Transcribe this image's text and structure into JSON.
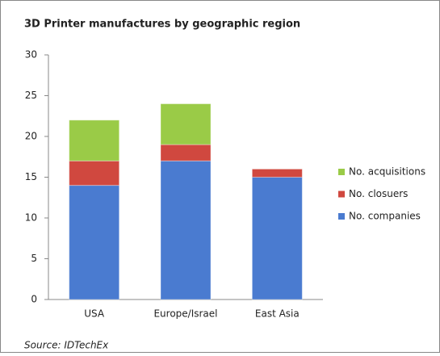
{
  "chart_data": {
    "type": "stacked_bar",
    "title": "3D Printer manufactures by geographic region",
    "categories": [
      "USA",
      "Europe/Israel",
      "East Asia"
    ],
    "series": [
      {
        "name": "No. companies",
        "color": "#4a7bd0",
        "values": [
          14,
          17,
          15
        ]
      },
      {
        "name": "No. closuers",
        "color": "#d0483f",
        "values": [
          3,
          2,
          1
        ]
      },
      {
        "name": "No. acquisitions",
        "color": "#9acb47",
        "values": [
          5,
          5,
          0
        ]
      }
    ],
    "ylim": [
      0,
      30
    ],
    "yticks": [
      0,
      5,
      10,
      15,
      20,
      25,
      30
    ],
    "grid": false,
    "legend": "right",
    "source": "Source: IDTechEx"
  }
}
